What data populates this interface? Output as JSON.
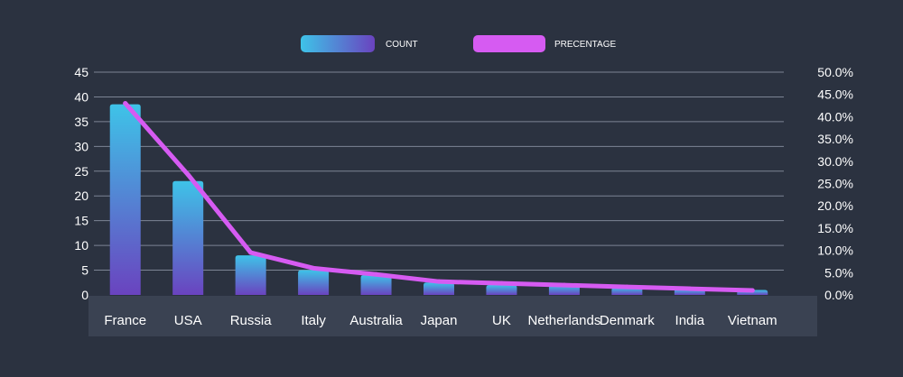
{
  "chart_data": {
    "type": "bar",
    "categories": [
      "France",
      "USA",
      "Russia",
      "Italy",
      "Australia",
      "Japan",
      "UK",
      "Netherlands",
      "Denmark",
      "India",
      "Vietnam"
    ],
    "series": [
      {
        "name": "COUNT",
        "type": "bar",
        "axis": "left",
        "values": [
          38.5,
          23,
          8,
          5,
          4,
          2.5,
          2,
          2,
          1.5,
          1.2,
          1
        ]
      },
      {
        "name": "PRECENTAGE",
        "type": "line",
        "axis": "right",
        "values": [
          43.0,
          27.0,
          9.5,
          6.0,
          4.6,
          3.0,
          2.6,
          2.2,
          1.8,
          1.4,
          1.0
        ]
      }
    ],
    "ylim": [
      0,
      45
    ],
    "y_ticks": [
      "0",
      "5",
      "10",
      "15",
      "20",
      "25",
      "30",
      "35",
      "40",
      "45"
    ],
    "y2lim": [
      0,
      50
    ],
    "y2_ticks": [
      "0.0%",
      "5.0%",
      "10.0%",
      "15.0%",
      "20.0%",
      "25.0%",
      "30.0%",
      "35.0%",
      "40.0%",
      "45.0%",
      "50.0%"
    ],
    "grid": true,
    "legend_position": "top-center",
    "colors": {
      "background": "#2b3240",
      "bar_top": "#3ec3e8",
      "bar_bottom": "#6a43bf",
      "line": "#d65bf2",
      "axis_text": "#ffffff",
      "gridline": "#7c8494",
      "label_band": "#3a4252"
    }
  }
}
